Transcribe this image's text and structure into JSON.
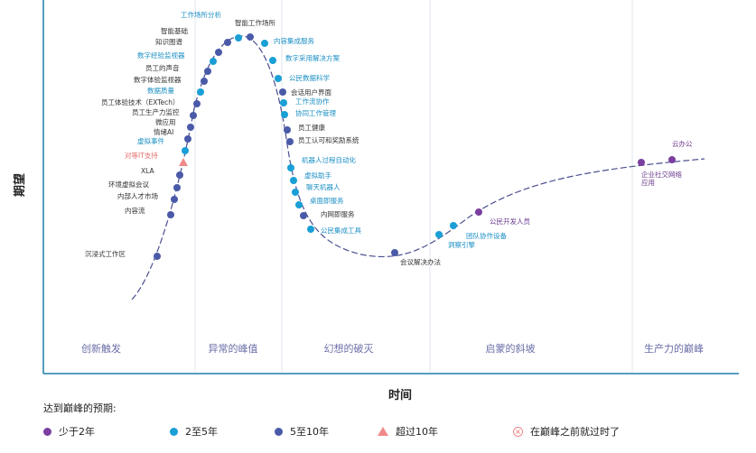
{
  "chart_data": {
    "type": "scatter",
    "xlabel": "时间",
    "ylabel": "期望",
    "phases": [
      "创新触发",
      "异常的峰值",
      "幻想的破灭",
      "启蒙的斜坡",
      "生产力的巅峰"
    ],
    "legend_title": "达到巅峰的预期:",
    "legend": [
      {
        "key": "lt2",
        "label": "少于2年",
        "color": "#7b3fa0",
        "marker": "dot"
      },
      {
        "key": "y2to5",
        "label": "2至5年",
        "color": "#1a9fd6",
        "marker": "dot"
      },
      {
        "key": "y5to10",
        "label": "5至10年",
        "color": "#4a5aa8",
        "marker": "dot"
      },
      {
        "key": "gt10",
        "label": "超过10年",
        "color": "#ef8a8a",
        "marker": "triangle"
      },
      {
        "key": "obsolete",
        "label": "在巅峰之前就过时了",
        "color": "#e66",
        "marker": "x"
      }
    ],
    "points": [
      {
        "label": "沉浸式工作区",
        "cat": "y5to10"
      },
      {
        "label": "内容流",
        "cat": "y5to10"
      },
      {
        "label": "内部人才市场",
        "cat": "y5to10"
      },
      {
        "label": "环境虚拟会议",
        "cat": "y5to10"
      },
      {
        "label": "XLA",
        "cat": "y5to10"
      },
      {
        "label": "对等IT支持",
        "cat": "gt10"
      },
      {
        "label": "虚拟事件",
        "cat": "y2to5"
      },
      {
        "label": "情绪AI",
        "cat": "y5to10"
      },
      {
        "label": "微应用",
        "cat": "y5to10"
      },
      {
        "label": "员工生产力监控",
        "cat": "y5to10"
      },
      {
        "label": "员工体验技术（EXTech）",
        "cat": "y5to10"
      },
      {
        "label": "数据质量",
        "cat": "y2to5"
      },
      {
        "label": "数字体验监视器",
        "cat": "y5to10"
      },
      {
        "label": "员工的声音",
        "cat": "y5to10"
      },
      {
        "label": "数字经验监视器",
        "cat": "y2to5"
      },
      {
        "label": "知识图谱",
        "cat": "y5to10"
      },
      {
        "label": "智能基础",
        "cat": "y5to10"
      },
      {
        "label": "工作场所分析",
        "cat": "y2to5"
      },
      {
        "label": "智能工作场所",
        "cat": "y5to10"
      },
      {
        "label": "内容集成服务",
        "cat": "y2to5"
      },
      {
        "label": "数字采用解决方案",
        "cat": "y2to5"
      },
      {
        "label": "公民数据科学",
        "cat": "y2to5"
      },
      {
        "label": "会话用户界面",
        "cat": "y5to10"
      },
      {
        "label": "工作流协作",
        "cat": "y2to5"
      },
      {
        "label": "协同工作管理",
        "cat": "y2to5"
      },
      {
        "label": "员工健康",
        "cat": "y5to10"
      },
      {
        "label": "员工认可和奖励系统",
        "cat": "y5to10"
      },
      {
        "label": "机器人过程自动化",
        "cat": "y2to5"
      },
      {
        "label": "虚拟助手",
        "cat": "y2to5"
      },
      {
        "label": "聊天机器人",
        "cat": "y2to5"
      },
      {
        "label": "桌面即服务",
        "cat": "y2to5"
      },
      {
        "label": "内网即服务",
        "cat": "y5to10"
      },
      {
        "label": "公民集成工具",
        "cat": "y2to5"
      },
      {
        "label": "会议解决办法",
        "cat": "y5to10"
      },
      {
        "label": "洞察引擎",
        "cat": "y2to5"
      },
      {
        "label": "团队协作设备",
        "cat": "y2to5"
      },
      {
        "label": "公民开发人员",
        "cat": "lt2"
      },
      {
        "label": "企业社交网络应用",
        "cat": "lt2"
      },
      {
        "label": "云办公",
        "cat": "lt2"
      }
    ]
  }
}
